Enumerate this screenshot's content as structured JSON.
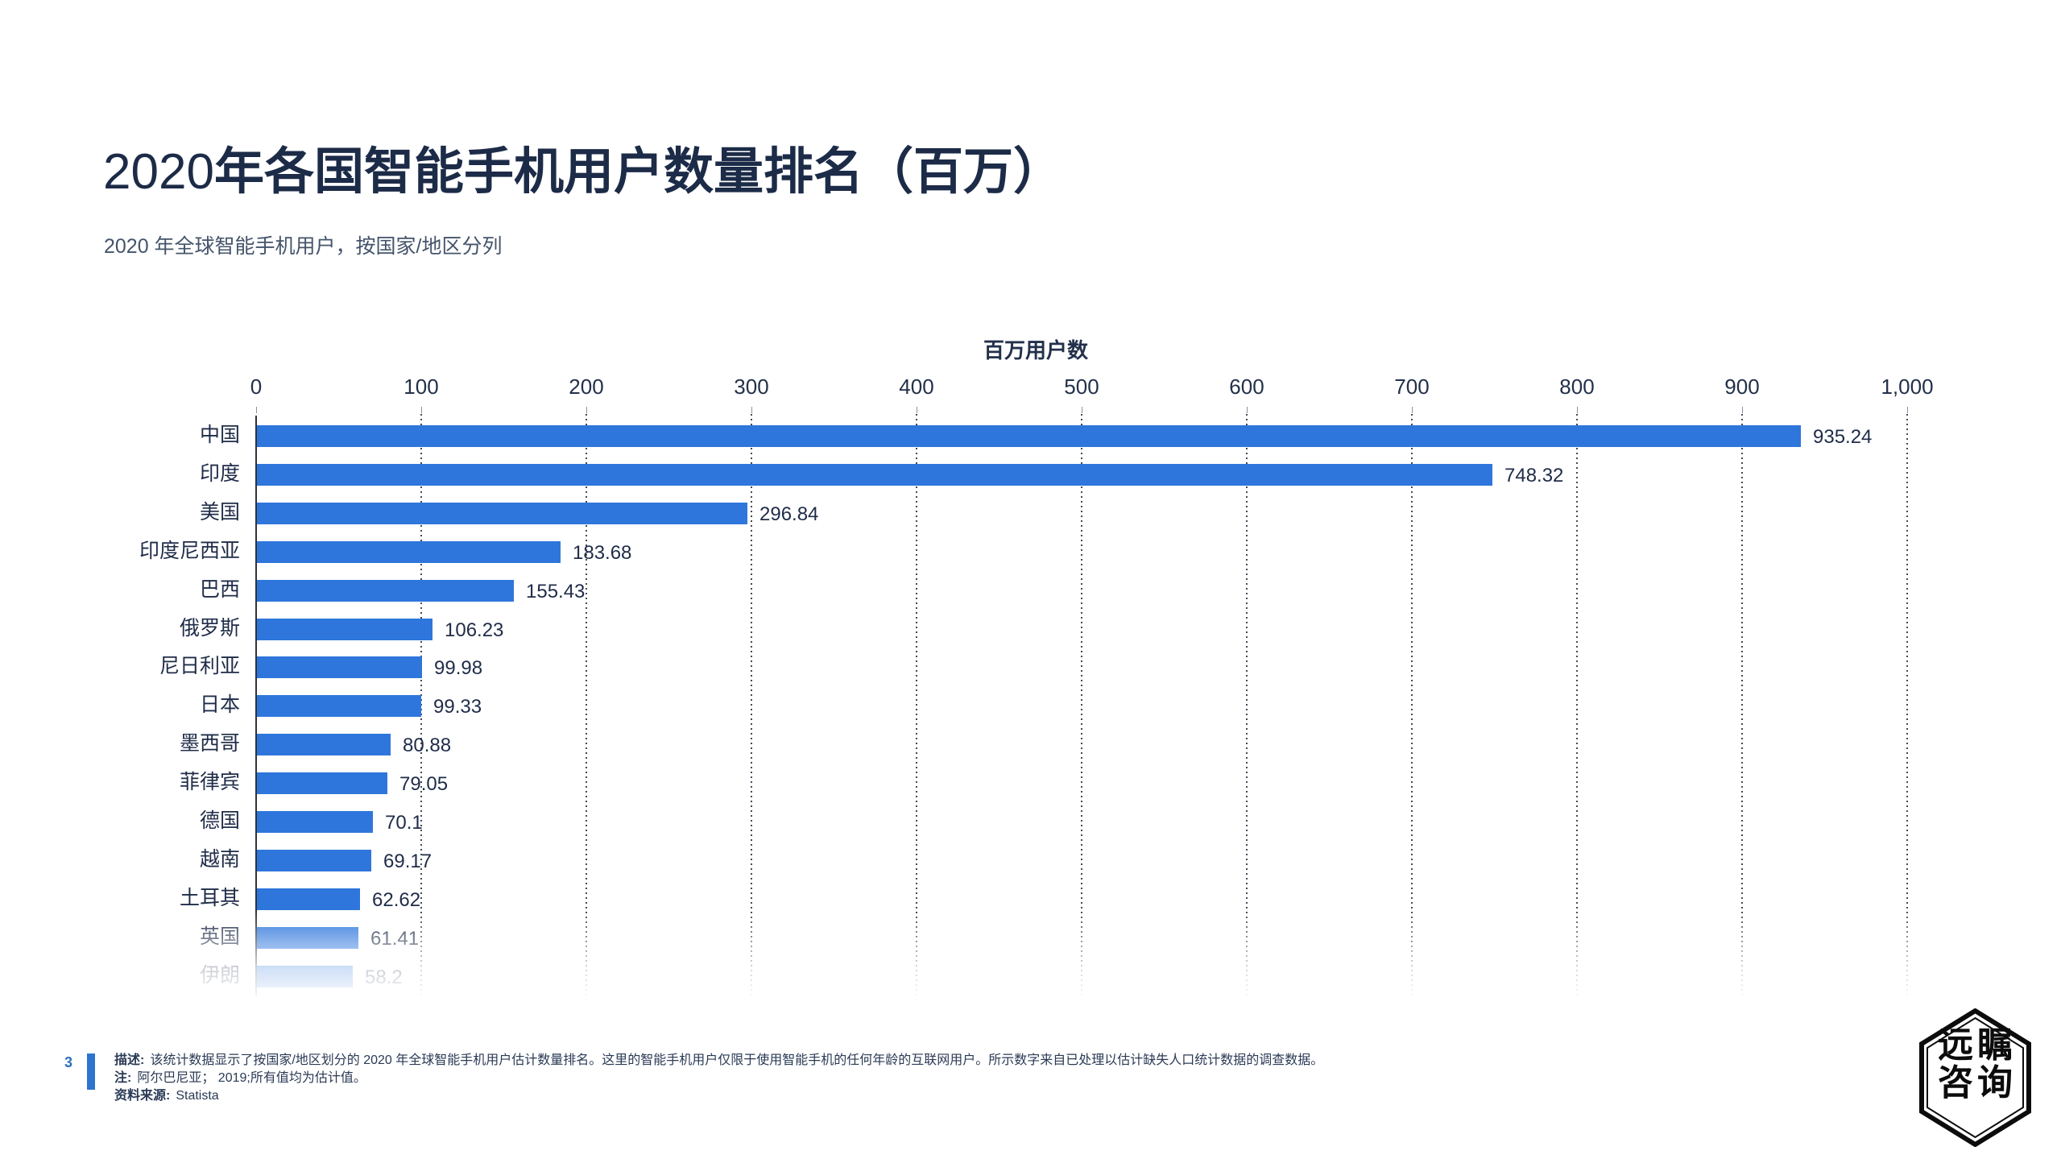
{
  "page": {
    "title_prefix": "2020",
    "title_main": "年各国智能手机用户数量排名（百万）",
    "subtitle": "2020 年全球智能手机用户，按国家/地区分列"
  },
  "chart_data": {
    "type": "bar",
    "orientation": "horizontal",
    "title": "百万用户数",
    "xlabel": "百万用户数",
    "ylabel": "",
    "xlim": [
      0,
      1000
    ],
    "xticks": [
      0,
      100,
      200,
      300,
      400,
      500,
      600,
      700,
      800,
      900,
      1000
    ],
    "xtick_labels": [
      "0",
      "100",
      "200",
      "300",
      "400",
      "500",
      "600",
      "700",
      "800",
      "900",
      "1,000"
    ],
    "grid": "dotted-vertical",
    "legend": false,
    "bar_color": "#2E76DC",
    "categories": [
      "中国",
      "印度",
      "美国",
      "印度尼西亚",
      "巴西",
      "俄罗斯",
      "尼日利亚",
      "日本",
      "墨西哥",
      "菲律宾",
      "德国",
      "越南",
      "土耳其",
      "英国",
      "伊朗"
    ],
    "values": [
      935.24,
      748.32,
      296.84,
      183.68,
      155.43,
      106.23,
      99.98,
      99.33,
      80.88,
      79.05,
      70.1,
      69.17,
      62.62,
      61.41,
      58.2
    ],
    "value_labels": [
      "935.24",
      "748.32",
      "296.84",
      "183.68",
      "155.43",
      "106.23",
      "99.98",
      "99.33",
      "80.88",
      "79.05",
      "70.1",
      "69.17",
      "62.62",
      "61.41",
      "58.2"
    ],
    "faded_bottom_rows": [
      "英国",
      "伊朗"
    ]
  },
  "footer": {
    "page_number": "3",
    "notes": [
      {
        "label": "描述:",
        "text": "该统计数据显示了按国家/地区划分的 2020 年全球智能手机用户估计数量排名。这里的智能手机用户仅限于使用智能手机的任何年龄的互联网用户。所示数字来自已处理以估计缺失人口统计数据的调查数据。"
      },
      {
        "label": "注:",
        "text": "阿尔巴尼亚； 2019;所有值均为估计值。"
      },
      {
        "label": "资料来源:",
        "text": "Statista"
      }
    ]
  },
  "logo": {
    "line1": "远瞩",
    "line2": "咨询"
  },
  "colors": {
    "bar": "#2E76DC",
    "accent_blue": "#2E74CE",
    "title": "#1C2B47",
    "text": "#2A3A55",
    "grid": "#414c58"
  }
}
